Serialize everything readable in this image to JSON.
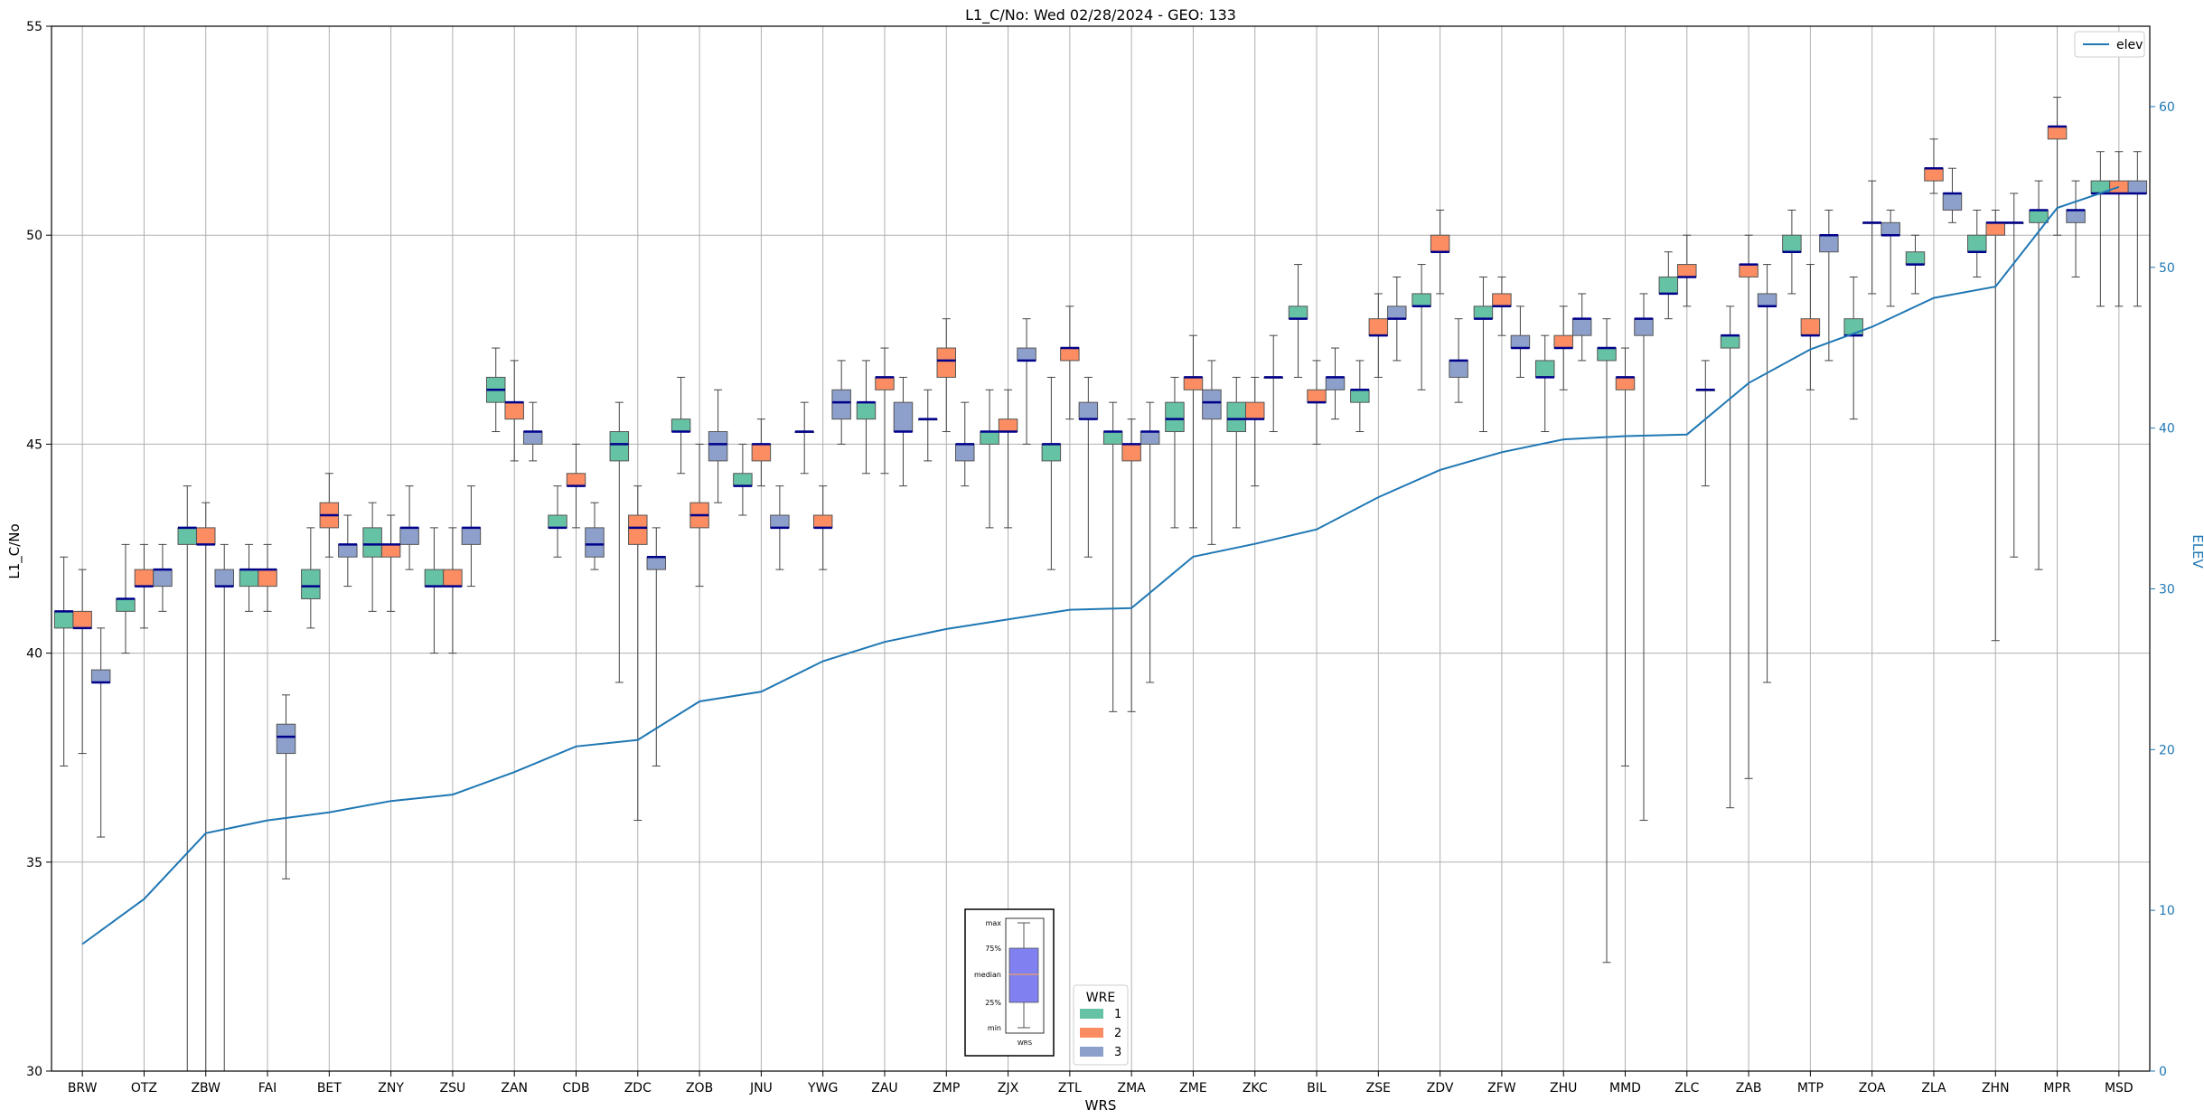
{
  "chart_data": {
    "type": "box",
    "title": "L1_C/No: Wed 02/28/2024 - GEO: 133",
    "xlabel": "WRS",
    "ylabel": "L1_C/No",
    "y2label": "ELEV",
    "ylim": [
      30,
      55
    ],
    "y2lim": [
      0,
      65
    ],
    "yticks": [
      30,
      35,
      40,
      45,
      50,
      55
    ],
    "y2ticks": [
      0,
      10,
      20,
      30,
      40,
      50,
      60
    ],
    "grid": true,
    "categories": [
      "BRW",
      "OTZ",
      "ZBW",
      "FAI",
      "BET",
      "ZNY",
      "ZSU",
      "ZAN",
      "CDB",
      "ZDC",
      "ZOB",
      "JNU",
      "YWG",
      "ZAU",
      "ZMP",
      "ZJX",
      "ZTL",
      "ZMA",
      "ZME",
      "ZKC",
      "BIL",
      "ZSE",
      "ZDV",
      "ZFW",
      "ZHU",
      "MMD",
      "ZLC",
      "ZAB",
      "MTP",
      "ZOA",
      "ZLA",
      "ZHN",
      "MPR",
      "MSD"
    ],
    "wre_legend": {
      "title": "WRE",
      "position": "bottom-center",
      "items": [
        {
          "label": "1",
          "color": "#66c2a5"
        },
        {
          "label": "2",
          "color": "#fc8d62"
        },
        {
          "label": "3",
          "color": "#8da0cb"
        }
      ]
    },
    "line_legend": {
      "label": "elev",
      "color": "#1f77b4",
      "position": "top-right"
    },
    "key_inset": {
      "labels": [
        "max",
        "75%",
        "median",
        "25%",
        "min"
      ],
      "xlabel": "WRS"
    },
    "boxes": [
      [
        [
          37.3,
          40.6,
          41.0,
          41.0,
          42.3
        ],
        [
          37.6,
          40.6,
          40.6,
          41.0,
          42.0
        ],
        [
          35.6,
          39.3,
          39.3,
          39.6,
          40.6
        ]
      ],
      [
        [
          40.0,
          41.0,
          41.3,
          41.3,
          42.6
        ],
        [
          40.6,
          41.6,
          41.6,
          42.0,
          42.6
        ],
        [
          41.0,
          41.6,
          42.0,
          42.0,
          42.6
        ]
      ],
      [
        [
          25.0,
          42.6,
          43.0,
          43.0,
          44.0
        ],
        [
          25.0,
          42.6,
          42.6,
          43.0,
          43.6
        ],
        [
          25.0,
          41.6,
          41.6,
          42.0,
          42.6
        ]
      ],
      [
        [
          41.0,
          41.6,
          42.0,
          42.0,
          42.6
        ],
        [
          41.0,
          41.6,
          42.0,
          42.0,
          42.6
        ],
        [
          34.6,
          37.6,
          38.0,
          38.3,
          39.0
        ]
      ],
      [
        [
          40.6,
          41.3,
          41.6,
          42.0,
          43.0
        ],
        [
          42.3,
          43.0,
          43.3,
          43.6,
          44.3
        ],
        [
          41.6,
          42.3,
          42.6,
          42.6,
          43.3
        ]
      ],
      [
        [
          41.0,
          42.3,
          42.6,
          43.0,
          43.6
        ],
        [
          41.0,
          42.3,
          42.6,
          42.6,
          43.3
        ],
        [
          42.0,
          42.6,
          43.0,
          43.0,
          44.0
        ]
      ],
      [
        [
          40.0,
          41.6,
          41.6,
          42.0,
          43.0
        ],
        [
          40.0,
          41.6,
          41.6,
          42.0,
          43.0
        ],
        [
          41.6,
          42.6,
          43.0,
          43.0,
          44.0
        ]
      ],
      [
        [
          45.3,
          46.0,
          46.3,
          46.6,
          47.3
        ],
        [
          44.6,
          45.6,
          46.0,
          46.0,
          47.0
        ],
        [
          44.6,
          45.0,
          45.3,
          45.3,
          46.0
        ]
      ],
      [
        [
          42.3,
          43.0,
          43.0,
          43.3,
          44.0
        ],
        [
          43.0,
          44.0,
          44.0,
          44.3,
          45.0
        ],
        [
          42.0,
          42.3,
          42.6,
          43.0,
          43.6
        ]
      ],
      [
        [
          39.3,
          44.6,
          45.0,
          45.3,
          46.0
        ],
        [
          36.0,
          42.6,
          43.0,
          43.3,
          44.0
        ],
        [
          37.3,
          42.0,
          42.3,
          42.3,
          43.0
        ]
      ],
      [
        [
          44.3,
          45.3,
          45.3,
          45.6,
          46.6
        ],
        [
          41.6,
          43.0,
          43.3,
          43.6,
          45.0
        ],
        [
          43.6,
          44.6,
          45.0,
          45.3,
          46.3
        ]
      ],
      [
        [
          43.3,
          44.0,
          44.0,
          44.3,
          45.0
        ],
        [
          44.0,
          44.6,
          45.0,
          45.0,
          45.6
        ],
        [
          42.0,
          43.0,
          43.0,
          43.3,
          44.0
        ]
      ],
      [
        [
          44.3,
          45.3,
          45.3,
          45.3,
          46.0
        ],
        [
          42.0,
          43.0,
          43.0,
          43.3,
          44.0
        ],
        [
          45.0,
          45.6,
          46.0,
          46.3,
          47.0
        ]
      ],
      [
        [
          44.3,
          45.6,
          46.0,
          46.0,
          47.0
        ],
        [
          44.3,
          46.3,
          46.6,
          46.6,
          47.3
        ],
        [
          44.0,
          45.3,
          45.3,
          46.0,
          46.6
        ]
      ],
      [
        [
          44.6,
          45.6,
          45.6,
          45.6,
          46.3
        ],
        [
          45.3,
          46.6,
          47.0,
          47.3,
          48.0
        ],
        [
          44.0,
          44.6,
          45.0,
          45.0,
          46.0
        ]
      ],
      [
        [
          43.0,
          45.0,
          45.3,
          45.3,
          46.3
        ],
        [
          43.0,
          45.3,
          45.3,
          45.6,
          46.3
        ],
        [
          45.0,
          47.0,
          47.0,
          47.3,
          48.0
        ]
      ],
      [
        [
          42.0,
          44.6,
          45.0,
          45.0,
          46.6
        ],
        [
          45.6,
          47.0,
          47.3,
          47.3,
          48.3
        ],
        [
          42.3,
          45.6,
          45.6,
          46.0,
          46.6
        ]
      ],
      [
        [
          38.6,
          45.0,
          45.3,
          45.3,
          46.0
        ],
        [
          38.6,
          44.6,
          45.0,
          45.0,
          45.6
        ],
        [
          39.3,
          45.0,
          45.3,
          45.3,
          46.0
        ]
      ],
      [
        [
          43.0,
          45.3,
          45.6,
          46.0,
          46.6
        ],
        [
          43.0,
          46.3,
          46.6,
          46.6,
          47.6
        ],
        [
          42.6,
          45.6,
          46.0,
          46.3,
          47.0
        ]
      ],
      [
        [
          43.0,
          45.3,
          45.6,
          46.0,
          46.6
        ],
        [
          44.0,
          45.6,
          45.6,
          46.0,
          46.6
        ],
        [
          45.3,
          46.6,
          46.6,
          46.6,
          47.6
        ]
      ],
      [
        [
          46.6,
          48.0,
          48.0,
          48.3,
          49.3
        ],
        [
          45.0,
          46.0,
          46.0,
          46.3,
          47.0
        ],
        [
          45.6,
          46.3,
          46.6,
          46.6,
          47.3
        ]
      ],
      [
        [
          45.3,
          46.0,
          46.3,
          46.3,
          47.0
        ],
        [
          46.6,
          47.6,
          47.6,
          48.0,
          48.6
        ],
        [
          47.0,
          48.0,
          48.0,
          48.3,
          49.0
        ]
      ],
      [
        [
          46.3,
          48.3,
          48.3,
          48.6,
          49.3
        ],
        [
          48.6,
          49.6,
          49.6,
          50.0,
          50.6
        ],
        [
          46.0,
          46.6,
          47.0,
          47.0,
          48.0
        ]
      ],
      [
        [
          45.3,
          48.0,
          48.0,
          48.3,
          49.0
        ],
        [
          47.6,
          48.3,
          48.3,
          48.6,
          49.0
        ],
        [
          46.6,
          47.3,
          47.3,
          47.6,
          48.3
        ]
      ],
      [
        [
          45.3,
          46.6,
          46.6,
          47.0,
          47.6
        ],
        [
          46.3,
          47.3,
          47.3,
          47.6,
          48.3
        ],
        [
          47.0,
          47.6,
          48.0,
          48.0,
          48.6
        ]
      ],
      [
        [
          32.6,
          47.0,
          47.3,
          47.3,
          48.0
        ],
        [
          37.3,
          46.3,
          46.6,
          46.6,
          47.3
        ],
        [
          36.0,
          47.6,
          48.0,
          48.0,
          48.6
        ]
      ],
      [
        [
          48.0,
          48.6,
          48.6,
          49.0,
          49.6
        ],
        [
          48.3,
          49.0,
          49.0,
          49.3,
          50.0
        ],
        [
          44.0,
          46.3,
          46.3,
          46.3,
          47.0
        ]
      ],
      [
        [
          36.3,
          47.3,
          47.6,
          47.6,
          48.3
        ],
        [
          37.0,
          49.0,
          49.3,
          49.3,
          50.0
        ],
        [
          39.3,
          48.3,
          48.3,
          48.6,
          49.3
        ]
      ],
      [
        [
          48.6,
          49.6,
          49.6,
          50.0,
          50.6
        ],
        [
          46.3,
          47.6,
          47.6,
          48.0,
          49.3
        ],
        [
          47.0,
          49.6,
          50.0,
          50.0,
          50.6
        ]
      ],
      [
        [
          45.6,
          47.6,
          47.6,
          48.0,
          49.0
        ],
        [
          48.6,
          50.3,
          50.3,
          50.3,
          51.3
        ],
        [
          48.3,
          50.0,
          50.0,
          50.3,
          50.6
        ]
      ],
      [
        [
          48.6,
          49.3,
          49.3,
          49.6,
          50.0
        ],
        [
          51.0,
          51.3,
          51.6,
          51.6,
          52.3
        ],
        [
          50.3,
          50.6,
          51.0,
          51.0,
          51.6
        ]
      ],
      [
        [
          49.0,
          49.6,
          49.6,
          50.0,
          50.6
        ],
        [
          40.3,
          50.0,
          50.3,
          50.3,
          50.6
        ],
        [
          42.3,
          50.3,
          50.3,
          50.3,
          51.0
        ]
      ],
      [
        [
          42.0,
          50.3,
          50.6,
          50.6,
          51.3
        ],
        [
          50.0,
          52.3,
          52.6,
          52.6,
          53.3
        ],
        [
          49.0,
          50.3,
          50.6,
          50.6,
          51.3
        ]
      ],
      [
        [
          48.3,
          51.0,
          51.0,
          51.3,
          52.0
        ],
        [
          48.3,
          51.0,
          51.0,
          51.3,
          52.0
        ],
        [
          48.3,
          51.0,
          51.0,
          51.3,
          52.0
        ]
      ]
    ],
    "elev": [
      7.9,
      10.7,
      14.8,
      15.6,
      16.1,
      16.8,
      17.2,
      18.6,
      20.2,
      20.6,
      23.0,
      23.6,
      25.5,
      26.7,
      27.5,
      28.1,
      28.7,
      28.8,
      32.0,
      32.8,
      33.7,
      35.7,
      37.4,
      38.5,
      39.3,
      39.5,
      39.6,
      42.8,
      44.9,
      46.3,
      48.1,
      48.8,
      53.7,
      55.0
    ]
  }
}
